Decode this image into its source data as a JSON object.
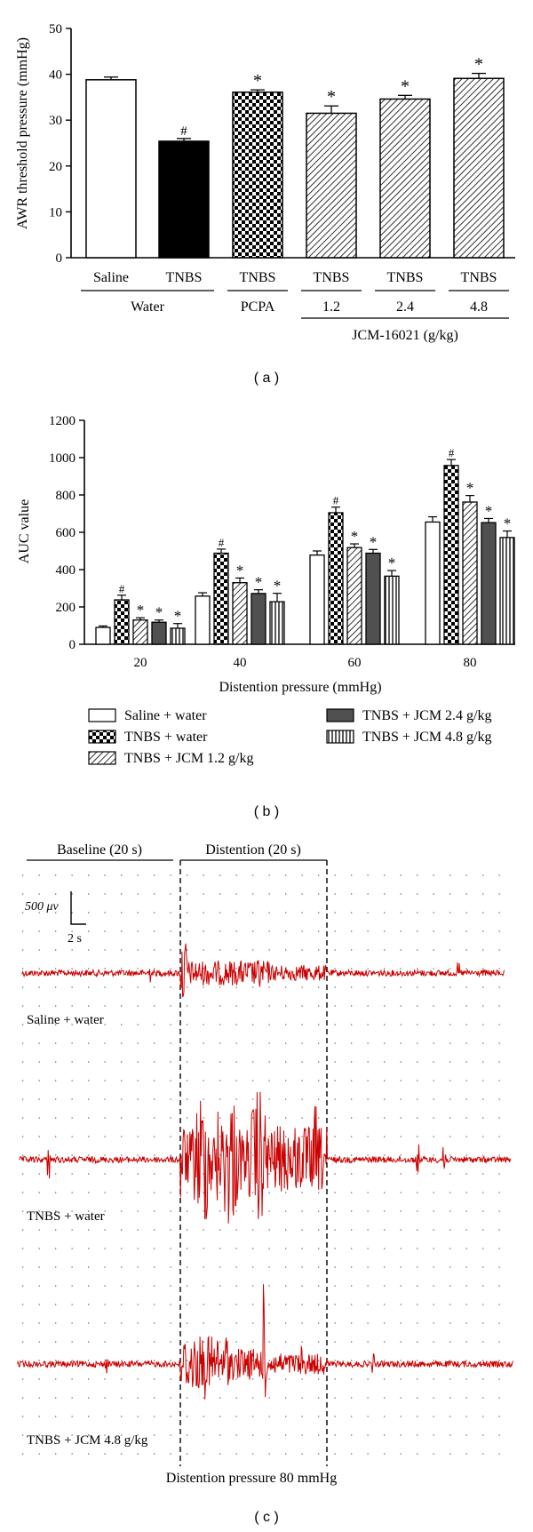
{
  "chart_data": [
    {
      "type": "bar",
      "panel_label": "( a )",
      "ylabel": "AWR threshold pressure (mmHg)",
      "ylim": [
        0,
        50
      ],
      "yticks": [
        0,
        10,
        20,
        30,
        40,
        50
      ],
      "categories": [
        "Saline",
        "TNBS",
        "TNBS",
        "TNBS",
        "TNBS",
        "TNBS"
      ],
      "values": [
        38.8,
        25.4,
        36.1,
        31.5,
        34.6,
        39.1
      ],
      "errors": [
        0.6,
        0.6,
        0.5,
        1.6,
        0.8,
        1.1
      ],
      "markers": [
        "",
        "#",
        "*",
        "*",
        "*",
        "*"
      ],
      "fills": [
        "white",
        "black",
        "checker",
        "hatch",
        "hatch",
        "hatch"
      ],
      "groups": [
        {
          "label": "Water",
          "from": 0,
          "to": 1
        },
        {
          "label": "PCPA",
          "from": 2,
          "to": 2
        },
        {
          "label": "1.2",
          "from": 3,
          "to": 3
        },
        {
          "label": "2.4",
          "from": 4,
          "to": 4
        },
        {
          "label": "4.8",
          "from": 5,
          "to": 5
        }
      ],
      "supergroup": {
        "label": "JCM-16021 (g/kg)",
        "from": 3,
        "to": 5
      }
    },
    {
      "type": "bar",
      "panel_label": "( b )",
      "xlabel": "Distention pressure (mmHg)",
      "ylabel": "AUC value",
      "ylim": [
        0,
        1200
      ],
      "yticks": [
        0,
        200,
        400,
        600,
        800,
        1000,
        1200
      ],
      "categories": [
        "20",
        "40",
        "60",
        "80"
      ],
      "series": [
        {
          "name": "Saline + water",
          "fill": "white",
          "values": [
            90,
            258,
            478,
            655
          ],
          "errors": [
            8,
            18,
            22,
            28
          ],
          "markers": [
            "",
            "",
            "",
            ""
          ]
        },
        {
          "name": "TNBS + water",
          "fill": "checker",
          "values": [
            238,
            488,
            705,
            958
          ],
          "errors": [
            25,
            22,
            30,
            32
          ],
          "markers": [
            "#",
            "#",
            "#",
            "#"
          ]
        },
        {
          "name": "TNBS + JCM 1.2 g/kg",
          "fill": "hatch",
          "values": [
            130,
            330,
            518,
            762
          ],
          "errors": [
            12,
            25,
            20,
            35
          ],
          "markers": [
            "*",
            "*",
            "*",
            "*"
          ]
        },
        {
          "name": "TNBS + JCM 2.4 g/kg",
          "fill": "gray",
          "values": [
            118,
            272,
            488,
            652
          ],
          "errors": [
            12,
            20,
            20,
            22
          ],
          "markers": [
            "*",
            "*",
            "*",
            "*"
          ]
        },
        {
          "name": "TNBS + JCM 4.8 g/kg",
          "fill": "vstripe",
          "values": [
            86,
            228,
            365,
            572
          ],
          "errors": [
            25,
            45,
            30,
            35
          ],
          "markers": [
            "*",
            "*",
            "*",
            "*"
          ]
        }
      ]
    }
  ],
  "panel_c": {
    "label": "( c )",
    "baseline_label": "Baseline (20 s)",
    "distention_label": "Distention (20 s)",
    "scale_voltage": "500 μv",
    "scale_time": "2 s",
    "trace_color": "#cc0000",
    "traces": [
      "Saline + water",
      "TNBS + water",
      "TNBS + JCM 4.8 g/kg"
    ],
    "footer": "Distention pressure 80 mmHg"
  }
}
